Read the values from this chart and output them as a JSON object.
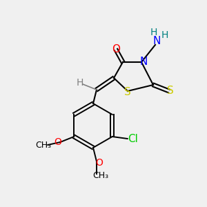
{
  "bg_color": "#f0f0f0",
  "atom_colors": {
    "C": "#000000",
    "H": "#808080",
    "N": "#0000ff",
    "O": "#ff0000",
    "S": "#cccc00",
    "Cl": "#00cc00",
    "NH2_H": "#008080"
  },
  "font_size_atom": 11,
  "font_size_small": 9,
  "figsize": [
    3.0,
    3.0
  ],
  "dpi": 100
}
